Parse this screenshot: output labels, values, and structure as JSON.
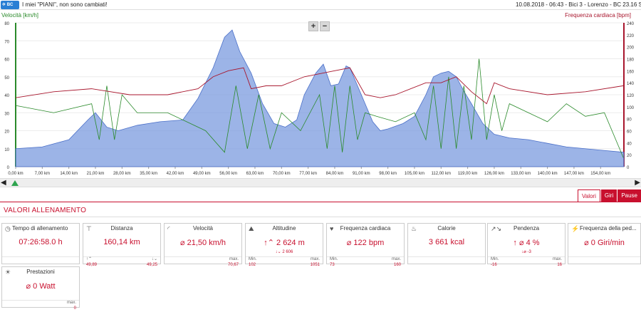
{
  "header": {
    "title": "I miei \"PIANI\", non sono cambiati!",
    "meta": "10.08.2018  -  06:43  -  Bici 3  -  Lorenzo  -  BC 23.16 S"
  },
  "chart_data": {
    "type": "area",
    "left_axis_label": "Velocità [km/h]",
    "right_axis_label": "Frequenza cardiaca [bpm]",
    "left_ticks": [
      "80",
      "70",
      "60",
      "50",
      "40",
      "30",
      "20",
      "10",
      "0"
    ],
    "right_ticks": [
      "240",
      "220",
      "200",
      "180",
      "160",
      "140",
      "120",
      "100",
      "80",
      "60",
      "40",
      "20",
      "0"
    ],
    "x_ticks": [
      "0,00 km",
      "7,00 km",
      "14,00 km",
      "21,00 km",
      "28,00 km",
      "35,00 km",
      "42,00 km",
      "49,00 km",
      "56,00 km",
      "63,00 km",
      "70,00 km",
      "77,00 km",
      "84,00 km",
      "91,00 km",
      "98,00 km",
      "105,00 km",
      "112,00 km",
      "119,00 km",
      "126,00 km",
      "133,00 km",
      "140,00 km",
      "147,00 km",
      "154,00 km"
    ],
    "xlim": [
      0,
      160.14
    ],
    "ylim_left": [
      0,
      80
    ],
    "ylim_right": [
      0,
      240
    ],
    "altitude_profile": {
      "x": [
        0,
        7,
        14,
        19,
        21,
        24,
        27,
        32,
        38,
        44,
        48,
        52,
        55,
        57,
        59,
        62,
        65,
        68,
        71,
        74,
        76,
        79,
        81,
        83,
        85,
        87,
        88,
        90,
        92,
        94,
        96,
        98,
        102,
        105,
        108,
        110,
        112,
        114,
        116,
        118,
        120,
        123,
        126,
        130,
        135,
        140,
        145,
        150,
        155,
        160.14
      ],
      "y": [
        10,
        11,
        15,
        26,
        30,
        22,
        20,
        23,
        25,
        26,
        38,
        55,
        72,
        76,
        64,
        52,
        35,
        24,
        22,
        26,
        40,
        52,
        57,
        45,
        46,
        56,
        55,
        45,
        35,
        25,
        20,
        21,
        24,
        28,
        40,
        50,
        52,
        53,
        50,
        42,
        35,
        24,
        18,
        16,
        15,
        13,
        11,
        10,
        9,
        8
      ]
    },
    "speed_series": {
      "x": [
        0,
        10,
        20,
        22,
        24,
        26,
        28,
        32,
        40,
        50,
        55,
        58,
        61,
        64,
        67,
        70,
        75,
        80,
        82,
        84,
        86,
        88,
        90,
        92,
        95,
        100,
        105,
        108,
        110,
        112,
        114,
        116,
        118,
        120,
        122,
        124,
        126,
        128,
        130,
        135,
        140,
        145,
        150,
        155,
        160
      ],
      "y": [
        34,
        30,
        35,
        15,
        45,
        15,
        40,
        30,
        30,
        20,
        8,
        45,
        10,
        40,
        10,
        30,
        20,
        40,
        10,
        45,
        8,
        45,
        15,
        30,
        28,
        25,
        30,
        15,
        45,
        10,
        50,
        10,
        45,
        15,
        60,
        15,
        40,
        20,
        35,
        30,
        25,
        35,
        28,
        30,
        5
      ]
    },
    "heart_rate_series": {
      "x": [
        0,
        10,
        20,
        30,
        40,
        48,
        52,
        56,
        60,
        62,
        66,
        70,
        76,
        80,
        84,
        88,
        92,
        96,
        100,
        108,
        112,
        116,
        120,
        124,
        126,
        130,
        140,
        150,
        160
      ],
      "y": [
        115,
        125,
        130,
        120,
        120,
        130,
        150,
        160,
        165,
        130,
        135,
        135,
        150,
        155,
        160,
        165,
        120,
        115,
        120,
        140,
        140,
        150,
        125,
        105,
        140,
        130,
        120,
        125,
        135
      ]
    },
    "colors": {
      "altitude": "#7b9bdf",
      "speed": "#2a8a2a",
      "heart_rate": "#a8162d"
    }
  },
  "zoom": {
    "plus": "+",
    "minus": "−"
  },
  "tabs": {
    "valori": "Valori",
    "giri": "Giri",
    "pause": "Pause"
  },
  "section_title": "VALORI ALLENAMENTO",
  "cards": {
    "tempo": {
      "label": "Tempo di allenamento",
      "value": "07:26:58.0 h"
    },
    "distanza": {
      "label": "Distanza",
      "value": "160,14 km",
      "bl_value": "49,89",
      "br_value": "49,25"
    },
    "velocita": {
      "label": "Velocità",
      "value": "⌀ 21,50 km/h",
      "br_label": "max.",
      "br_value": "70,67"
    },
    "altitudine": {
      "label": "Altitudine",
      "value": "2 624 m",
      "value2": "2 606",
      "bl_label": "Min.",
      "bl_value": "102",
      "br_label": "max.",
      "br_value": "1051"
    },
    "frequenza": {
      "label": "Frequenza cardiaca",
      "value": "⌀ 122 bpm",
      "bl_label": "Min.",
      "bl_value": "73",
      "br_label": "max.",
      "br_value": "160"
    },
    "calorie": {
      "label": "Calorie",
      "value": "3 661 kcal"
    },
    "pendenza": {
      "label": "Pendenza",
      "value": "⌀ 4 %",
      "value2": "-3",
      "bl_label": "Min.",
      "bl_value": "-16",
      "br_label": "max.",
      "br_value": "16"
    },
    "frequenza_ped": {
      "label": "Frequenza della ped...",
      "value": "⌀ 0 Giri/min"
    },
    "prestazioni": {
      "label": "Prestazioni",
      "value": "⌀ 0 Watt",
      "br_label": "max.",
      "br_value": "0"
    }
  }
}
